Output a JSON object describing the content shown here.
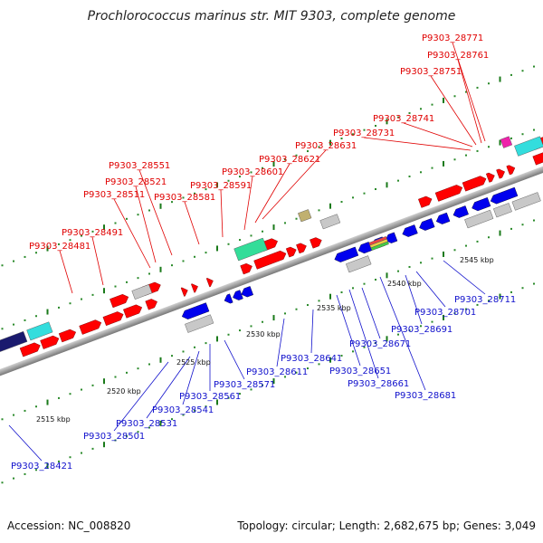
{
  "title": "Prochlorococcus marinus str. MIT 9303, complete genome",
  "accession": "Accession: NC_008820",
  "summary": "Topology: circular; Length: 2,682,675 bp; Genes: 3,049",
  "colors": {
    "forward": "#ff0000",
    "reverse": "#0000ee",
    "backbone": "#888888",
    "red_label": "#e00000",
    "blue_label": "#1010cc"
  },
  "scale_labels": [
    "2515 kbp",
    "2520 kbp",
    "2525 kbp",
    "2530 kbp",
    "2535 kbp",
    "2540 kbp",
    "2545 kbp"
  ],
  "forward_labels": [
    "P9303_28481",
    "P9303_28491",
    "P9303_28511",
    "P9303_28521",
    "P9303_28551",
    "P9303_28581",
    "P9303_28591",
    "P9303_28601",
    "P9303_28621",
    "P9303_28631",
    "P9303_28731",
    "P9303_28741",
    "P9303_28751",
    "P9303_28761",
    "P9303_28771"
  ],
  "reverse_labels": [
    "P9303_28421",
    "P9303_28501",
    "P9303_28531",
    "P9303_28541",
    "P9303_28561",
    "P9303_28571",
    "P9303_28611",
    "P9303_28641",
    "P9303_28651",
    "P9303_28661",
    "P9303_28671",
    "P9303_28681",
    "P9303_28691",
    "P9303_28701",
    "P9303_28711"
  ]
}
